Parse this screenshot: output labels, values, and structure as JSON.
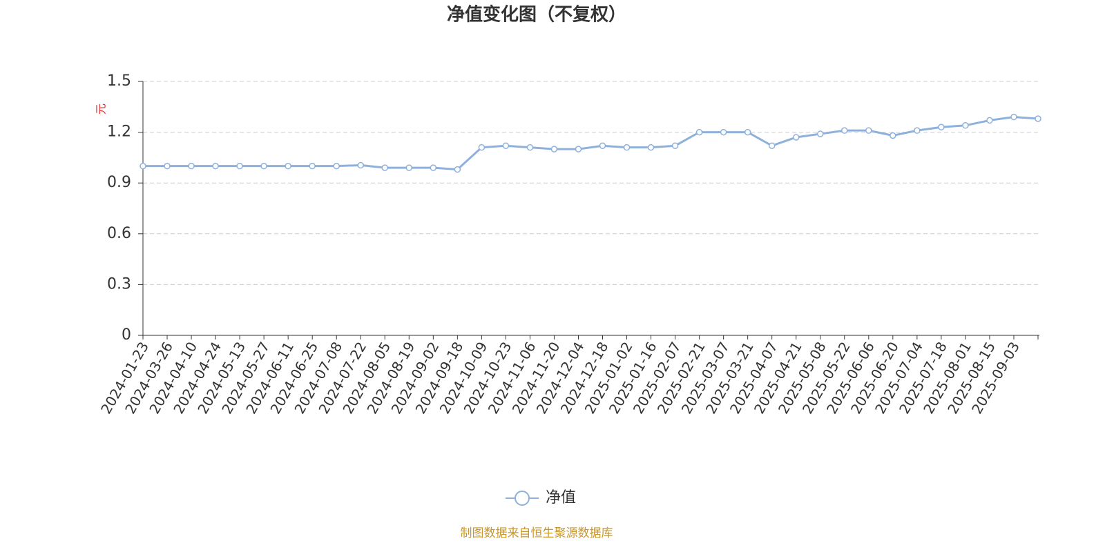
{
  "chart_data": {
    "type": "line",
    "title": "净值变化图（不复权）",
    "y_label": "元",
    "categories": [
      "2024-01-23",
      "2024-03-26",
      "2024-04-10",
      "2024-04-24",
      "2024-05-13",
      "2024-05-27",
      "2024-06-11",
      "2024-06-25",
      "2024-07-08",
      "2024-07-22",
      "2024-08-05",
      "2024-08-19",
      "2024-09-02",
      "2024-09-18",
      "2024-10-09",
      "2024-10-23",
      "2024-11-06",
      "2024-11-20",
      "2024-12-04",
      "2024-12-18",
      "2025-01-02",
      "2025-01-16",
      "2025-02-07",
      "2025-02-21",
      "2025-03-07",
      "2025-03-21",
      "2025-04-07",
      "2025-04-21",
      "2025-05-08",
      "2025-05-22",
      "2025-06-06",
      "2025-06-20",
      "2025-07-04",
      "2025-07-18",
      "2025-08-01",
      "2025-08-15",
      "2025-09-03",
      null
    ],
    "series": [
      {
        "name": "净值",
        "color": "#8eb0dc",
        "values": [
          1.0,
          1.0,
          1.0,
          1.0,
          1.0,
          1.0,
          1.0,
          1.0,
          1.0,
          1.005,
          0.99,
          0.99,
          0.99,
          0.98,
          1.11,
          1.12,
          1.11,
          1.1,
          1.1,
          1.12,
          1.11,
          1.11,
          1.12,
          1.2,
          1.2,
          1.2,
          1.12,
          1.17,
          1.19,
          1.21,
          1.21,
          1.18,
          1.21,
          1.23,
          1.24,
          1.27,
          1.29,
          1.28
        ]
      }
    ],
    "ylim": [
      0,
      1.5
    ],
    "yticks": [
      0,
      0.3,
      0.6,
      0.9,
      1.2,
      1.5
    ],
    "grid": true,
    "source": "制图数据来自恒生聚源数据库"
  }
}
